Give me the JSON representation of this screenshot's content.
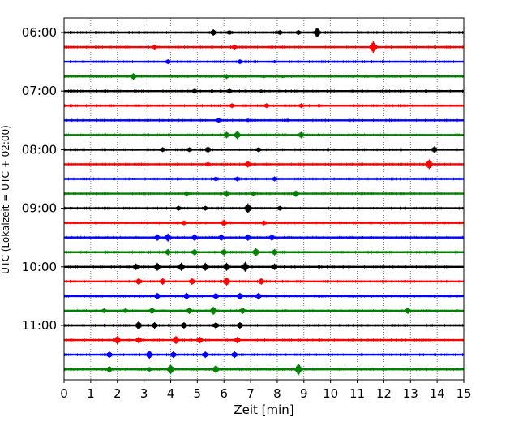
{
  "chart_data": {
    "type": "line",
    "title": "",
    "xlabel": "Zeit  [min]",
    "ylabel": "UTC (Lokalzeit = UTC + 02:00)",
    "xlim": [
      0,
      15
    ],
    "x_ticks": [
      0,
      1,
      2,
      3,
      4,
      5,
      6,
      7,
      8,
      9,
      10,
      11,
      12,
      13,
      14,
      15
    ],
    "y_tick_labels": [
      "06:00",
      "07:00",
      "08:00",
      "09:00",
      "10:00",
      "11:00"
    ],
    "grid": "vertical dotted",
    "legend": "none",
    "trace_interval_min": 15,
    "color_cycle": [
      "#000000",
      "#ff0000",
      "#0000ff",
      "#008000"
    ],
    "series": [
      {
        "start": "06:00",
        "color": "#000000",
        "events": [
          [
            5.6,
            4
          ],
          [
            6.2,
            3
          ],
          [
            8.1,
            3
          ],
          [
            8.8,
            3
          ],
          [
            9.5,
            6
          ]
        ]
      },
      {
        "start": "06:15",
        "color": "#ff0000",
        "events": [
          [
            3.4,
            3
          ],
          [
            6.4,
            3
          ],
          [
            7.8,
            2
          ],
          [
            11.6,
            7
          ]
        ]
      },
      {
        "start": "06:30",
        "color": "#0000ff",
        "events": [
          [
            3.9,
            3
          ],
          [
            6.6,
            3
          ],
          [
            7.9,
            2
          ]
        ]
      },
      {
        "start": "06:45",
        "color": "#008000",
        "events": [
          [
            2.6,
            4
          ],
          [
            6.1,
            3
          ],
          [
            7.5,
            2
          ],
          [
            8.2,
            2
          ]
        ]
      },
      {
        "start": "07:00",
        "color": "#000000",
        "events": [
          [
            4.9,
            3
          ],
          [
            6.2,
            3
          ],
          [
            7.4,
            2
          ]
        ]
      },
      {
        "start": "07:15",
        "color": "#ff0000",
        "events": [
          [
            6.3,
            3
          ],
          [
            7.6,
            3
          ],
          [
            8.9,
            3
          ]
        ]
      },
      {
        "start": "07:30",
        "color": "#0000ff",
        "events": [
          [
            5.8,
            3
          ],
          [
            6.9,
            2
          ],
          [
            8.4,
            2
          ]
        ]
      },
      {
        "start": "07:45",
        "color": "#008000",
        "events": [
          [
            6.1,
            4
          ],
          [
            6.5,
            5
          ],
          [
            8.9,
            4
          ]
        ]
      },
      {
        "start": "08:00",
        "color": "#000000",
        "events": [
          [
            3.7,
            3
          ],
          [
            4.7,
            3
          ],
          [
            5.4,
            4
          ],
          [
            7.3,
            3
          ],
          [
            13.9,
            4
          ]
        ]
      },
      {
        "start": "08:15",
        "color": "#ff0000",
        "events": [
          [
            5.4,
            3
          ],
          [
            6.9,
            4
          ],
          [
            13.7,
            6
          ]
        ]
      },
      {
        "start": "08:30",
        "color": "#0000ff",
        "events": [
          [
            5.7,
            3
          ],
          [
            6.5,
            3
          ],
          [
            7.9,
            3
          ]
        ]
      },
      {
        "start": "08:45",
        "color": "#008000",
        "events": [
          [
            4.6,
            3
          ],
          [
            6.1,
            4
          ],
          [
            7.1,
            3
          ],
          [
            8.7,
            4
          ]
        ]
      },
      {
        "start": "09:00",
        "color": "#000000",
        "events": [
          [
            4.3,
            3
          ],
          [
            5.3,
            3
          ],
          [
            6.9,
            6
          ],
          [
            8.1,
            3
          ]
        ]
      },
      {
        "start": "09:15",
        "color": "#ff0000",
        "events": [
          [
            4.5,
            3
          ],
          [
            6.0,
            4
          ],
          [
            7.5,
            3
          ]
        ]
      },
      {
        "start": "09:30",
        "color": "#0000ff",
        "events": [
          [
            3.5,
            4
          ],
          [
            3.9,
            5
          ],
          [
            4.9,
            4
          ],
          [
            5.9,
            4
          ],
          [
            6.9,
            4
          ],
          [
            7.8,
            4
          ]
        ]
      },
      {
        "start": "09:45",
        "color": "#008000",
        "events": [
          [
            3.9,
            4
          ],
          [
            4.9,
            4
          ],
          [
            6.0,
            4
          ],
          [
            7.2,
            5
          ],
          [
            7.9,
            4
          ]
        ]
      },
      {
        "start": "10:00",
        "color": "#000000",
        "events": [
          [
            2.7,
            4
          ],
          [
            3.5,
            5
          ],
          [
            4.4,
            5
          ],
          [
            5.3,
            5
          ],
          [
            6.1,
            5
          ],
          [
            6.8,
            6
          ],
          [
            7.9,
            4
          ]
        ]
      },
      {
        "start": "10:15",
        "color": "#ff0000",
        "events": [
          [
            2.8,
            4
          ],
          [
            3.7,
            4
          ],
          [
            4.8,
            4
          ],
          [
            6.1,
            5
          ],
          [
            7.4,
            4
          ]
        ]
      },
      {
        "start": "10:30",
        "color": "#0000ff",
        "events": [
          [
            3.5,
            4
          ],
          [
            4.6,
            4
          ],
          [
            5.7,
            4
          ],
          [
            6.6,
            4
          ],
          [
            7.3,
            4
          ]
        ]
      },
      {
        "start": "10:45",
        "color": "#008000",
        "events": [
          [
            1.5,
            3
          ],
          [
            2.3,
            3
          ],
          [
            3.3,
            4
          ],
          [
            4.7,
            4
          ],
          [
            5.6,
            5
          ],
          [
            6.7,
            4
          ],
          [
            12.9,
            4
          ]
        ]
      },
      {
        "start": "11:00",
        "color": "#000000",
        "events": [
          [
            2.8,
            5
          ],
          [
            3.4,
            4
          ],
          [
            4.5,
            4
          ],
          [
            5.7,
            4
          ],
          [
            6.6,
            4
          ]
        ]
      },
      {
        "start": "11:15",
        "color": "#ff0000",
        "events": [
          [
            2.0,
            5
          ],
          [
            2.8,
            4
          ],
          [
            4.2,
            5
          ],
          [
            5.1,
            4
          ],
          [
            6.5,
            4
          ]
        ]
      },
      {
        "start": "11:30",
        "color": "#0000ff",
        "events": [
          [
            1.7,
            4
          ],
          [
            3.2,
            5
          ],
          [
            4.1,
            4
          ],
          [
            5.3,
            4
          ],
          [
            6.4,
            4
          ]
        ]
      },
      {
        "start": "11:45",
        "color": "#008000",
        "events": [
          [
            1.7,
            4
          ],
          [
            3.2,
            3
          ],
          [
            4.0,
            6
          ],
          [
            5.7,
            5
          ],
          [
            8.8,
            7
          ]
        ]
      }
    ]
  }
}
